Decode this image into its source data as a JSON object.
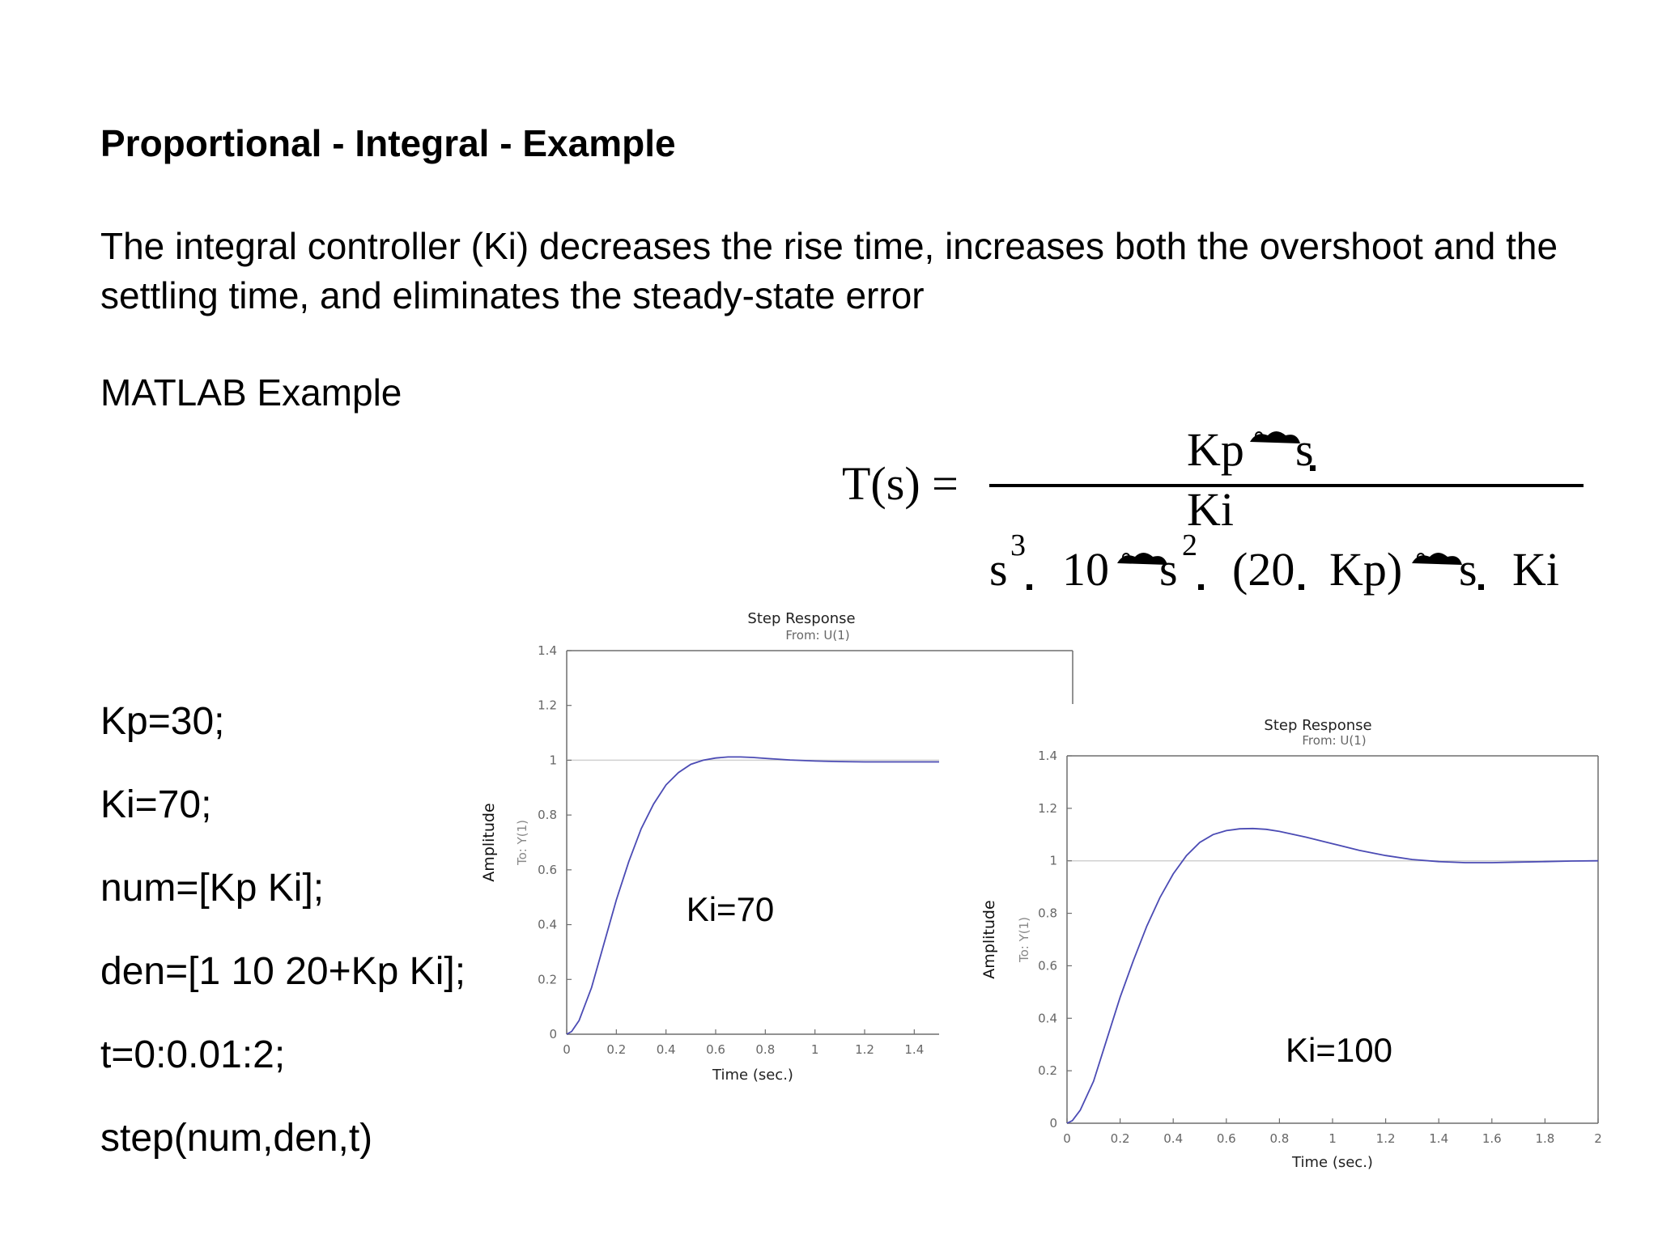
{
  "slide": {
    "title": "Proportional - Integral - Example",
    "description": "The integral controller (Ki) decreases the rise time, increases both the overshoot and the settling time, and eliminates the steady-state error",
    "subtitle": "MATLAB Example",
    "code": [
      "Kp=30;",
      "Ki=70;",
      "num=[Kp Ki];",
      "den=[1 10 20+Kp Ki];",
      "t=0:0.01:2;",
      "step(num,den,t)"
    ]
  },
  "equation": {
    "lhs": "T(s) =",
    "numerator": [
      "Kp",
      "s",
      "Ki"
    ],
    "denominator": [
      "s",
      "3",
      "10",
      "s",
      "2",
      "(20",
      "Kp)",
      "s",
      "Ki"
    ]
  },
  "colors": {
    "curve": "#4b4bb4",
    "axis": "#6e6e6e",
    "grid": "#d0d0d0",
    "tick_text": "#666666"
  },
  "chart_data": [
    {
      "type": "line",
      "title": "Step Response",
      "subtitle": "From: U(1)",
      "xlabel": "Time (sec.)",
      "ylabel": "Amplitude",
      "ylabel2": "To: Y(1)",
      "annotation": "Ki=70",
      "xlim": [
        0,
        1.5
      ],
      "ylim": [
        0,
        1.4
      ],
      "xticks": [
        "0",
        "0.2",
        "0.4",
        "0.6",
        "0.8",
        "1",
        "1.2",
        "1.4"
      ],
      "yticks": [
        "0",
        "0.2",
        "0.4",
        "0.6",
        "0.8",
        "1",
        "1.2",
        "1.4"
      ],
      "reference_line": 1,
      "series": [
        {
          "x": [
            0,
            0.02,
            0.05,
            0.1,
            0.15,
            0.2,
            0.25,
            0.3,
            0.35,
            0.4,
            0.45,
            0.5,
            0.55,
            0.6,
            0.65,
            0.7,
            0.75,
            0.8,
            0.85,
            0.9,
            1.0,
            1.1,
            1.2,
            1.3,
            1.4,
            1.5
          ],
          "y": [
            0,
            0.01,
            0.05,
            0.17,
            0.33,
            0.49,
            0.63,
            0.75,
            0.84,
            0.91,
            0.955,
            0.985,
            1.0,
            1.008,
            1.012,
            1.012,
            1.01,
            1.007,
            1.004,
            1.001,
            0.997,
            0.995,
            0.994,
            0.994,
            0.994,
            0.994
          ]
        }
      ]
    },
    {
      "type": "line",
      "title": "Step Response",
      "subtitle": "From: U(1)",
      "xlabel": "Time (sec.)",
      "ylabel": "Amplitude",
      "ylabel2": "To: Y(1)",
      "annotation": "Ki=100",
      "xlim": [
        0,
        2
      ],
      "ylim": [
        0,
        1.4
      ],
      "xticks": [
        "0",
        "0.2",
        "0.4",
        "0.6",
        "0.8",
        "1",
        "1.2",
        "1.4",
        "1.6",
        "1.8",
        "2"
      ],
      "yticks": [
        "0",
        "0.2",
        "0.4",
        "0.6",
        "0.8",
        "1",
        "1.2",
        "1.4"
      ],
      "reference_line": 1,
      "series": [
        {
          "x": [
            0,
            0.02,
            0.05,
            0.1,
            0.15,
            0.2,
            0.25,
            0.3,
            0.35,
            0.4,
            0.45,
            0.5,
            0.55,
            0.6,
            0.65,
            0.7,
            0.75,
            0.8,
            0.9,
            1.0,
            1.1,
            1.2,
            1.3,
            1.4,
            1.5,
            1.6,
            1.7,
            1.8,
            1.9,
            2.0
          ],
          "y": [
            0,
            0.01,
            0.05,
            0.16,
            0.32,
            0.48,
            0.62,
            0.75,
            0.86,
            0.95,
            1.02,
            1.07,
            1.1,
            1.115,
            1.122,
            1.123,
            1.12,
            1.112,
            1.09,
            1.065,
            1.04,
            1.02,
            1.005,
            0.997,
            0.993,
            0.993,
            0.995,
            0.997,
            0.999,
            1.0
          ]
        }
      ]
    }
  ]
}
